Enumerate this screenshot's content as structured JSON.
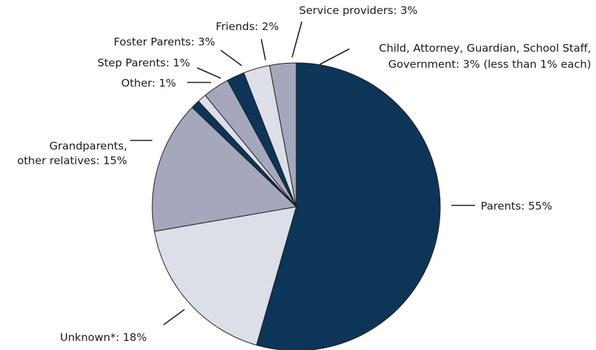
{
  "chart_data": {
    "type": "pie",
    "title": "",
    "start": "12 o'clock",
    "direction": "clockwise",
    "slices": [
      {
        "name": "Parents",
        "value": 55,
        "label": "Parents: 55%",
        "color": "#0d3558"
      },
      {
        "name": "Unknown*",
        "value": 18,
        "label": "Unknown*: 18%",
        "color": "#dcdfe8"
      },
      {
        "name": "Grandparents, other relatives",
        "value": 15,
        "label_lines": [
          "Grandparents,",
          "other relatives: 15%"
        ],
        "color": "#a5a8bd"
      },
      {
        "name": "Other",
        "value": 1,
        "label": "Other: 1%",
        "color": "#0d3558"
      },
      {
        "name": "Step Parents",
        "value": 1,
        "label": "Step Parents: 1%",
        "color": "#dcdfe8"
      },
      {
        "name": "Foster Parents",
        "value": 3,
        "label": "Foster Parents: 3%",
        "color": "#a5a8bd"
      },
      {
        "name": "Friends",
        "value": 2,
        "label": "Friends: 2%",
        "color": "#0d3558"
      },
      {
        "name": "Service providers",
        "value": 3,
        "label": "Service providers: 3%",
        "color": "#dcdfe8"
      },
      {
        "name": "Child, Attorney, Guardian, School Staff, Government",
        "value": 3,
        "label_lines": [
          "Child, Attorney, Guardian, School Staff,",
          "Government: 3% (less than 1% each)"
        ],
        "color": "#a5a8bd"
      }
    ]
  }
}
